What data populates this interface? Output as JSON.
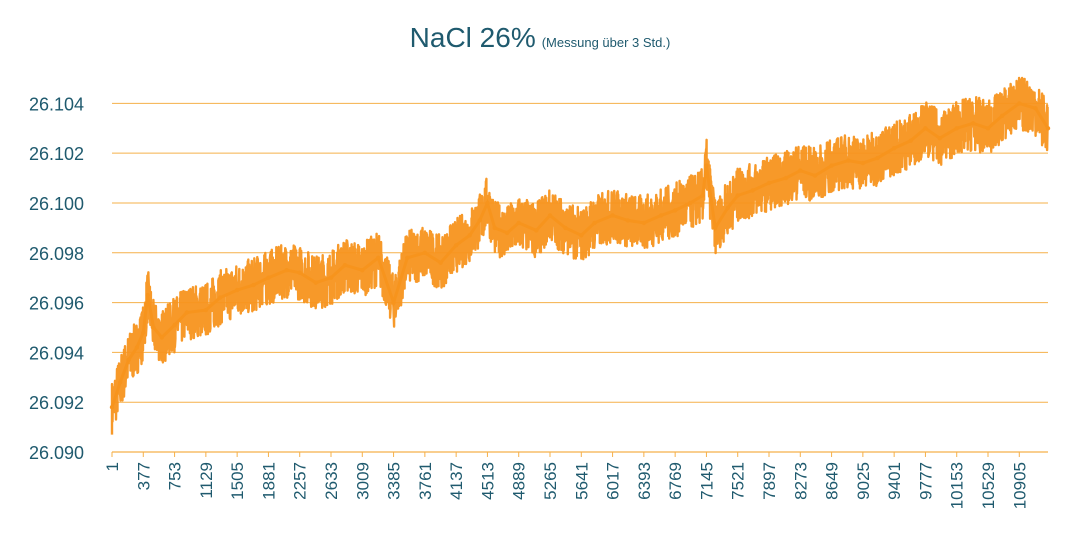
{
  "chart_data": {
    "type": "line",
    "title": "NaCl 26%",
    "subtitle": "(Messung über 3 Std.)",
    "xlabel": "",
    "ylabel": "",
    "ylim": [
      26.09,
      26.1055
    ],
    "yticks": [
      "26.090",
      "26.092",
      "26.094",
      "26.096",
      "26.098",
      "26.100",
      "26.102",
      "26.104"
    ],
    "xlim": [
      1,
      11250
    ],
    "xticks": [
      "1",
      "377",
      "753",
      "1129",
      "1505",
      "1881",
      "2257",
      "2633",
      "3009",
      "3385",
      "3761",
      "4137",
      "4513",
      "4889",
      "5265",
      "5641",
      "6017",
      "6393",
      "6769",
      "7145",
      "7521",
      "7897",
      "8273",
      "8649",
      "9025",
      "9401",
      "9777",
      "10153",
      "10529",
      "10905"
    ],
    "grid": true,
    "legend": "none",
    "line_color": "#f7941d",
    "grid_color": "#f5b04a",
    "text_color": "#1f5a6e",
    "series": [
      {
        "x": [
          1,
          100,
          200,
          300,
          377,
          430,
          500,
          600,
          753,
          900,
          1129,
          1300,
          1505,
          1700,
          1881,
          2100,
          2257,
          2450,
          2633,
          2800,
          3009,
          3200,
          3385,
          3550,
          3761,
          3950,
          4137,
          4300,
          4420,
          4513,
          4600,
          4750,
          4889,
          5100,
          5265,
          5450,
          5641,
          5800,
          6017,
          6200,
          6393,
          6600,
          6769,
          6950,
          7100,
          7145,
          7250,
          7400,
          7521,
          7700,
          7897,
          8100,
          8273,
          8450,
          8649,
          8850,
          9025,
          9200,
          9401,
          9600,
          9777,
          9950,
          10153,
          10350,
          10529,
          10700,
          10905,
          11100,
          11250
        ],
        "y": [
          26.0918,
          26.0928,
          26.0937,
          26.0942,
          26.0948,
          26.0963,
          26.095,
          26.0946,
          26.0951,
          26.0956,
          26.0957,
          26.0962,
          26.0965,
          26.0967,
          26.097,
          26.0973,
          26.0972,
          26.0968,
          26.097,
          26.0975,
          26.0973,
          26.0978,
          26.096,
          26.0978,
          26.098,
          26.0976,
          26.0983,
          26.0987,
          26.0993,
          26.1,
          26.099,
          26.0988,
          26.0992,
          26.0989,
          26.0995,
          26.099,
          26.0987,
          26.0992,
          26.0995,
          26.0993,
          26.0992,
          26.0995,
          26.0997,
          26.1,
          26.1003,
          26.1015,
          26.099,
          26.0998,
          26.1003,
          26.1005,
          26.1008,
          26.101,
          26.1013,
          26.1011,
          26.1015,
          26.1017,
          26.1016,
          26.1018,
          26.1022,
          26.1025,
          26.103,
          26.1026,
          26.103,
          26.1032,
          26.103,
          26.1035,
          26.104,
          26.1038,
          26.103
        ]
      }
    ]
  }
}
